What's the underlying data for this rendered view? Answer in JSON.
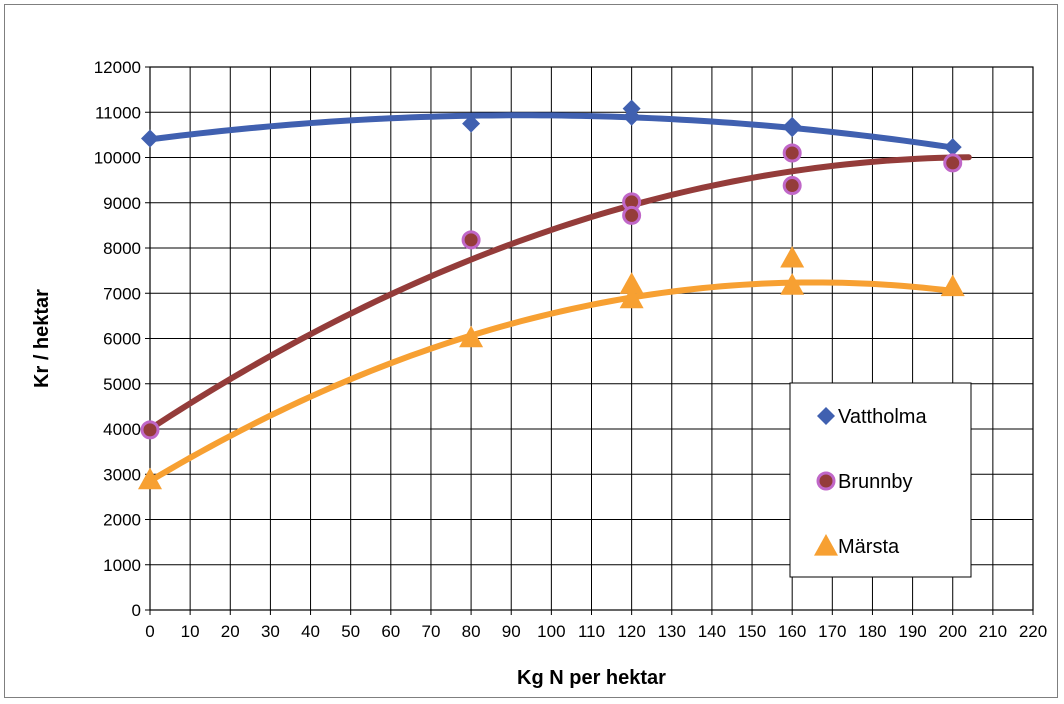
{
  "chart_data": {
    "type": "scatter",
    "title": "",
    "xlabel": "Kg N per hektar",
    "ylabel": "Kr / hektar",
    "xlim": [
      0,
      220
    ],
    "ylim": [
      0,
      12000
    ],
    "xticks": [
      0,
      10,
      20,
      30,
      40,
      50,
      60,
      70,
      80,
      90,
      100,
      110,
      120,
      130,
      140,
      150,
      160,
      170,
      180,
      190,
      200,
      210,
      220
    ],
    "yticks": [
      0,
      1000,
      2000,
      3000,
      4000,
      5000,
      6000,
      7000,
      8000,
      9000,
      10000,
      11000,
      12000
    ],
    "grid": true,
    "legend_position": "right",
    "series": [
      {
        "name": "Vattholma",
        "marker": "diamond",
        "color": "#4060B0",
        "trend_color": "#4060B0",
        "points": [
          {
            "x": 0,
            "y": 10420
          },
          {
            "x": 80,
            "y": 10750
          },
          {
            "x": 120,
            "y": 11080
          },
          {
            "x": 120,
            "y": 10900
          },
          {
            "x": 160,
            "y": 10700
          },
          {
            "x": 160,
            "y": 10650
          },
          {
            "x": 200,
            "y": 10230
          }
        ],
        "trendline": {
          "x_range": [
            0,
            200
          ],
          "coefficients": [
            10400,
            11.5,
            -0.062
          ]
        }
      },
      {
        "name": "Brunnby",
        "marker": "circle",
        "color": "#943C3A",
        "edge_color": "#C067C8",
        "trend_color": "#943C3A",
        "points": [
          {
            "x": 0,
            "y": 3980
          },
          {
            "x": 80,
            "y": 8180
          },
          {
            "x": 120,
            "y": 9020
          },
          {
            "x": 120,
            "y": 8720
          },
          {
            "x": 160,
            "y": 10100
          },
          {
            "x": 160,
            "y": 9380
          },
          {
            "x": 200,
            "y": 9880
          }
        ],
        "trendline": {
          "x_range": [
            0,
            204
          ],
          "coefficients": [
            4000,
            58,
            -0.14
          ]
        }
      },
      {
        "name": "Märsta",
        "marker": "triangle",
        "color": "#F7A032",
        "trend_color": "#F7A032",
        "points": [
          {
            "x": 0,
            "y": 2880
          },
          {
            "x": 80,
            "y": 6020
          },
          {
            "x": 120,
            "y": 7200
          },
          {
            "x": 120,
            "y": 6880
          },
          {
            "x": 160,
            "y": 7780
          },
          {
            "x": 160,
            "y": 7180
          },
          {
            "x": 200,
            "y": 7150
          }
        ],
        "trendline": {
          "x_range": [
            0,
            200
          ],
          "coefficients": [
            2850,
            53,
            -0.16
          ]
        }
      }
    ]
  }
}
